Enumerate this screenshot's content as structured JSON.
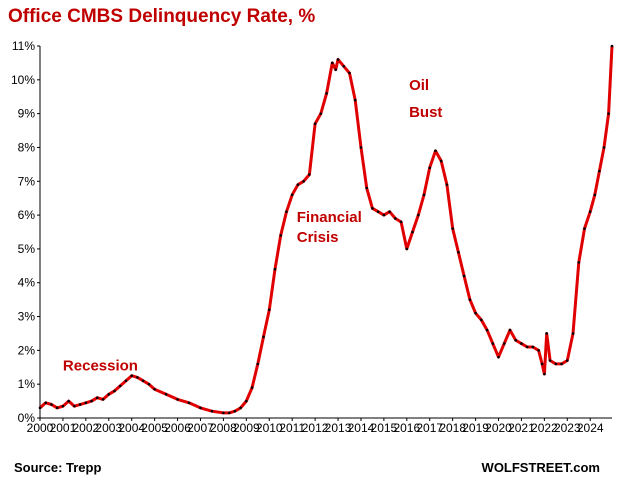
{
  "chart_data": {
    "type": "line",
    "title": "Office CMBS Delinquency Rate, %",
    "source": "Source: Trepp",
    "brand": "WOLFSTREET.com",
    "xlim": [
      2000,
      2024.95
    ],
    "ylim": [
      0,
      11
    ],
    "x_ticks": [
      2000,
      2001,
      2002,
      2003,
      2004,
      2005,
      2006,
      2007,
      2008,
      2009,
      2010,
      2011,
      2012,
      2013,
      2014,
      2015,
      2016,
      2017,
      2018,
      2019,
      2020,
      2021,
      2022,
      2023,
      2024
    ],
    "x_tick_labels": [
      "2000",
      "2001",
      "2002",
      "2003",
      "2004",
      "2005",
      "2006",
      "2007",
      "2008",
      "2009",
      "2010",
      "2011",
      "2012",
      "2013",
      "2014",
      "2015",
      "2016",
      "2017",
      "2018",
      "2019",
      "2020",
      "2021",
      "2022",
      "2023",
      "2024"
    ],
    "y_ticks": [
      0,
      1,
      2,
      3,
      4,
      5,
      6,
      7,
      8,
      9,
      10,
      11
    ],
    "y_tick_labels": [
      "0%",
      "1%",
      "2%",
      "3%",
      "4%",
      "5%",
      "6%",
      "7%",
      "8%",
      "9%",
      "10%",
      "11%"
    ],
    "grid": false,
    "line_color": "#e00000",
    "marker_color": "#000000",
    "annotations": [
      {
        "text": "Recession",
        "x": 2001.0,
        "y": 1.4
      },
      {
        "text": "Financial",
        "x": 2011.2,
        "y": 5.8
      },
      {
        "text": "Crisis",
        "x": 2011.2,
        "y": 5.2
      },
      {
        "text": "Oil",
        "x": 2016.1,
        "y": 9.7
      },
      {
        "text": "Bust",
        "x": 2016.1,
        "y": 8.9
      }
    ],
    "series": [
      {
        "x": [
          2000.0,
          2000.25,
          2000.5,
          2000.75,
          2001.0,
          2001.25,
          2001.5,
          2001.75,
          2002.0,
          2002.25,
          2002.5,
          2002.75,
          2003.0,
          2003.25,
          2003.5,
          2003.75,
          2004.0,
          2004.25,
          2004.5,
          2004.75,
          2005.0,
          2005.5,
          2006.0,
          2006.5,
          2007.0,
          2007.5,
          2008.0,
          2008.25,
          2008.5,
          2008.75,
          2009.0,
          2009.25,
          2009.5,
          2009.75,
          2010.0,
          2010.25,
          2010.5,
          2010.75,
          2011.0,
          2011.25,
          2011.5,
          2011.75,
          2012.0,
          2012.25,
          2012.5,
          2012.75,
          2012.9,
          2013.0,
          2013.25,
          2013.5,
          2013.75,
          2014.0,
          2014.25,
          2014.5,
          2014.75,
          2015.0,
          2015.25,
          2015.5,
          2015.75,
          2016.0,
          2016.25,
          2016.5,
          2016.75,
          2017.0,
          2017.25,
          2017.5,
          2017.75,
          2018.0,
          2018.25,
          2018.5,
          2018.75,
          2019.0,
          2019.25,
          2019.5,
          2019.75,
          2020.0,
          2020.25,
          2020.5,
          2020.75,
          2021.0,
          2021.25,
          2021.5,
          2021.75,
          2021.9,
          2022.0,
          2022.1,
          2022.25,
          2022.5,
          2022.75,
          2023.0,
          2023.25,
          2023.5,
          2023.75,
          2024.0,
          2024.2,
          2024.4,
          2024.6,
          2024.8,
          2024.95
        ],
        "y": [
          0.3,
          0.45,
          0.4,
          0.3,
          0.35,
          0.5,
          0.35,
          0.4,
          0.45,
          0.5,
          0.6,
          0.55,
          0.7,
          0.8,
          0.95,
          1.1,
          1.25,
          1.2,
          1.1,
          1.0,
          0.85,
          0.7,
          0.55,
          0.45,
          0.3,
          0.2,
          0.15,
          0.15,
          0.2,
          0.3,
          0.5,
          0.9,
          1.6,
          2.4,
          3.2,
          4.4,
          5.4,
          6.1,
          6.6,
          6.9,
          7.0,
          7.2,
          8.7,
          9.0,
          9.6,
          10.5,
          10.3,
          10.6,
          10.4,
          10.2,
          9.4,
          8.0,
          6.8,
          6.2,
          6.1,
          6.0,
          6.1,
          5.9,
          5.8,
          5.0,
          5.5,
          6.0,
          6.6,
          7.4,
          7.9,
          7.6,
          6.9,
          5.6,
          4.9,
          4.2,
          3.5,
          3.1,
          2.9,
          2.6,
          2.2,
          1.8,
          2.2,
          2.6,
          2.3,
          2.2,
          2.1,
          2.1,
          2.0,
          1.6,
          1.3,
          2.5,
          1.7,
          1.6,
          1.6,
          1.7,
          2.5,
          4.6,
          5.6,
          6.1,
          6.6,
          7.3,
          8.0,
          9.0,
          11.0
        ]
      }
    ]
  }
}
